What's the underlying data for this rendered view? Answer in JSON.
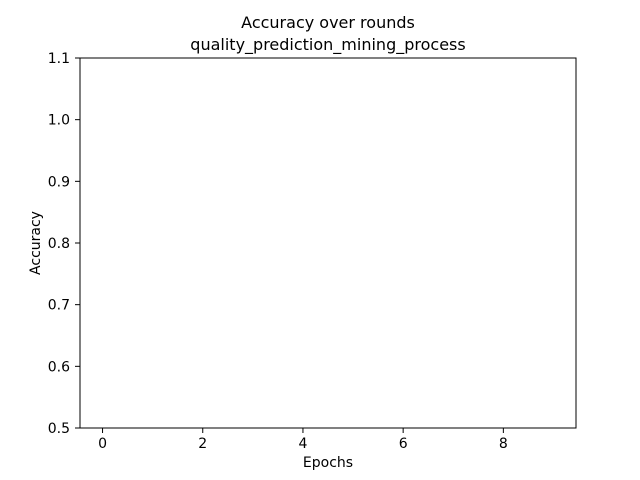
{
  "chart_data": {
    "type": "line",
    "title": "Accuracy over rounds",
    "subtitle": "quality_prediction_mining_process",
    "xlabel": "Epochs",
    "ylabel": "Accuracy",
    "xlim": [
      -0.45,
      9.45
    ],
    "ylim": [
      0.5,
      1.1
    ],
    "xticks": [
      0,
      2,
      4,
      6,
      8
    ],
    "yticks": [
      0.5,
      0.6,
      0.7,
      0.8,
      0.9,
      1.0,
      1.1
    ],
    "xtick_labels": [
      "0",
      "2",
      "4",
      "6",
      "8"
    ],
    "ytick_labels": [
      "0.5",
      "0.6",
      "0.7",
      "0.8",
      "0.9",
      "1.0",
      "1.1"
    ],
    "grid": false,
    "series": []
  }
}
